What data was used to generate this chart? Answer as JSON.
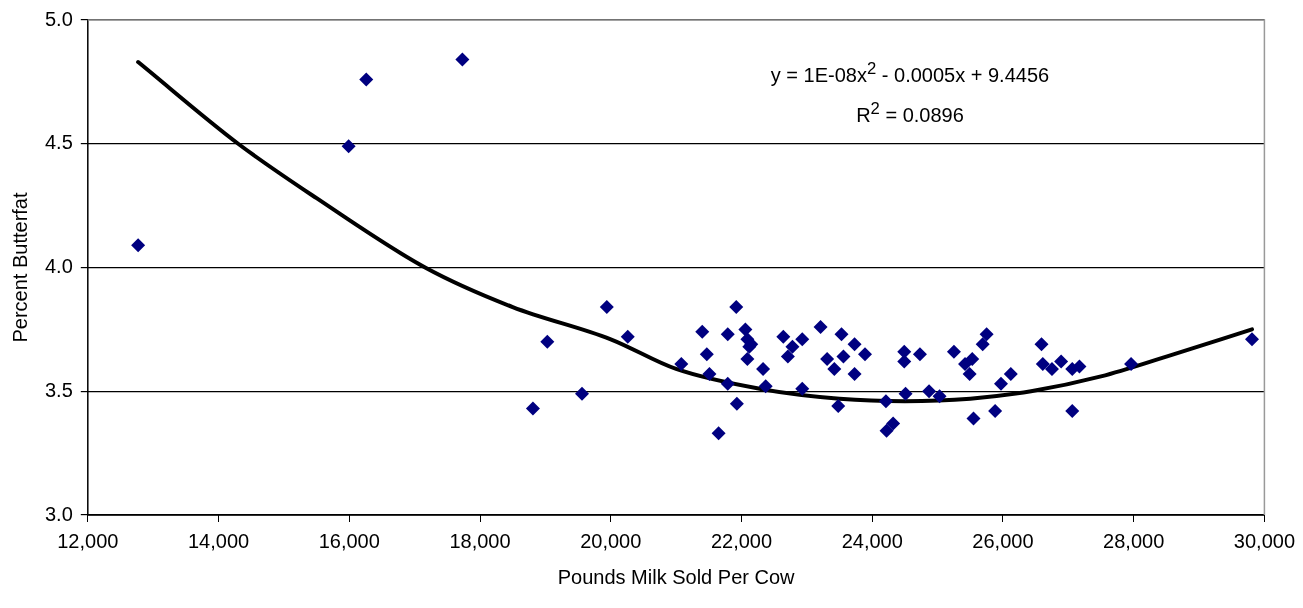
{
  "chart_data": {
    "type": "scatter",
    "xlabel": "Pounds Milk Sold Per Cow",
    "ylabel": "Percent Butterfat",
    "xlim": [
      12000,
      30000
    ],
    "xticks": [
      {
        "value": 12000,
        "label": "12,000"
      },
      {
        "value": 14000,
        "label": "14,000"
      },
      {
        "value": 16000,
        "label": "16,000"
      },
      {
        "value": 18000,
        "label": "18,000"
      },
      {
        "value": 20000,
        "label": "20,000"
      },
      {
        "value": 22000,
        "label": "22,000"
      },
      {
        "value": 24000,
        "label": "24,000"
      },
      {
        "value": 26000,
        "label": "26,000"
      },
      {
        "value": 28000,
        "label": "28,000"
      },
      {
        "value": 30000,
        "label": "30,000"
      }
    ],
    "ylim": [
      3.0,
      5.0
    ],
    "yticks": [
      {
        "value": 3,
        "label": "3.0"
      },
      {
        "value": 3.5,
        "label": "3.5"
      },
      {
        "value": 4,
        "label": "4.0"
      },
      {
        "value": 4.5,
        "label": "4.5"
      },
      {
        "value": 5,
        "label": "5.0"
      }
    ],
    "grid": "y",
    "legend": false,
    "marker": "diamond",
    "annotations": [
      "y = 1E-08x$^{2}$ - 0.0005x + 9.4456",
      "R$^{2}$ = 0.0896"
    ],
    "series": [
      {
        "color": "#000080",
        "x": [
          12770,
          15990,
          16260,
          17730,
          18810,
          19030,
          19560,
          19940,
          20260,
          21080,
          21400,
          21470,
          21510,
          21650,
          21790,
          21790,
          21920,
          21930,
          22060,
          22090,
          22090,
          22120,
          22150,
          22330,
          22370,
          22640,
          22710,
          22780,
          22930,
          22930,
          23210,
          23310,
          23420,
          23480,
          23530,
          23560,
          23730,
          23730,
          23890,
          24210,
          24220,
          24320,
          24490,
          24490,
          24510,
          24730,
          24870,
          25030,
          25250,
          25420,
          25490,
          25530,
          25550,
          25690,
          25750,
          25880,
          25970,
          26120,
          26590,
          26610,
          26750,
          26890,
          27060,
          27060,
          27170,
          27960,
          29810
        ],
        "values": [
          4.09,
          4.49,
          4.76,
          4.84,
          3.43,
          3.7,
          3.49,
          3.84,
          3.72,
          3.61,
          3.74,
          3.65,
          3.57,
          3.33,
          3.73,
          3.53,
          3.84,
          3.45,
          3.75,
          3.71,
          3.63,
          3.68,
          3.69,
          3.59,
          3.52,
          3.72,
          3.64,
          3.68,
          3.71,
          3.51,
          3.76,
          3.63,
          3.59,
          3.44,
          3.73,
          3.64,
          3.69,
          3.57,
          3.65,
          3.46,
          3.34,
          3.37,
          3.66,
          3.62,
          3.49,
          3.65,
          3.5,
          3.48,
          3.66,
          3.61,
          3.57,
          3.63,
          3.39,
          3.69,
          3.73,
          3.42,
          3.53,
          3.57,
          3.69,
          3.61,
          3.59,
          3.62,
          3.59,
          3.42,
          3.6,
          3.61,
          3.71
        ]
      },
      {
        "type": "line",
        "color": "#000000",
        "line_style": "solid",
        "marker": "none",
        "x": [
          12770,
          14300,
          15500,
          17160,
          18500,
          20000,
          21000,
          22280,
          23500,
          24500,
          25500,
          26430,
          27500,
          28500,
          29810
        ],
        "values": [
          4.83,
          4.5,
          4.28,
          4.0,
          3.84,
          3.71,
          3.59,
          3.51,
          3.47,
          3.46,
          3.47,
          3.5,
          3.56,
          3.64,
          3.75
        ]
      }
    ]
  }
}
